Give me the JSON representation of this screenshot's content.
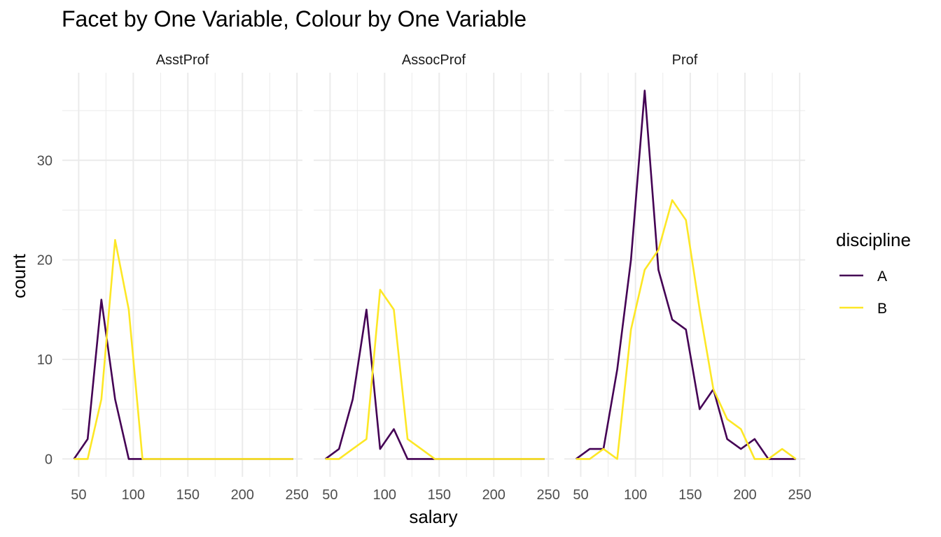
{
  "chart_data": {
    "type": "line",
    "title": "Facet by One Variable, Colour by One Variable",
    "xlabel": "salary",
    "ylabel": "count",
    "x": [
      45.68,
      58.23,
      70.78,
      83.33,
      95.88,
      108.43,
      120.98,
      133.53,
      146.08,
      158.63,
      171.18,
      183.73,
      196.28,
      208.83,
      221.38,
      233.93,
      246.48
    ],
    "xlim": [
      35,
      255
    ],
    "ylim": [
      -1.8,
      38.8
    ],
    "x_ticks": [
      50,
      100,
      150,
      200,
      250
    ],
    "y_ticks": [
      0,
      10,
      20,
      30
    ],
    "grid": true,
    "legend_title": "discipline",
    "legend_position": "right",
    "panels": [
      {
        "label": "AsstProf",
        "series": [
          {
            "name": "A",
            "color": "#440154",
            "values": [
              0,
              2,
              16,
              6,
              0,
              0,
              0,
              0,
              0,
              0,
              0,
              0,
              0,
              0,
              0,
              0,
              0
            ]
          },
          {
            "name": "B",
            "color": "#FDE725",
            "values": [
              0,
              0,
              6,
              22,
              15,
              0,
              0,
              0,
              0,
              0,
              0,
              0,
              0,
              0,
              0,
              0,
              0
            ]
          }
        ]
      },
      {
        "label": "AssocProf",
        "series": [
          {
            "name": "A",
            "color": "#440154",
            "values": [
              0,
              1,
              6,
              15,
              1,
              3,
              0,
              0,
              0,
              0,
              0,
              0,
              0,
              0,
              0,
              0,
              0
            ]
          },
          {
            "name": "B",
            "color": "#FDE725",
            "values": [
              0,
              0,
              1,
              2,
              17,
              15,
              2,
              1,
              0,
              0,
              0,
              0,
              0,
              0,
              0,
              0,
              0
            ]
          }
        ]
      },
      {
        "label": "Prof",
        "series": [
          {
            "name": "A",
            "color": "#440154",
            "values": [
              0,
              1,
              1,
              9,
              20,
              37,
              19,
              14,
              13,
              5,
              7,
              2,
              1,
              2,
              0,
              0,
              0
            ]
          },
          {
            "name": "B",
            "color": "#FDE725",
            "values": [
              0,
              0,
              1,
              0,
              13,
              19,
              21,
              26,
              24,
              15,
              7,
              4,
              3,
              0,
              0,
              1,
              0
            ]
          }
        ]
      }
    ],
    "legend": [
      {
        "label": "A",
        "color": "#440154"
      },
      {
        "label": "B",
        "color": "#FDE725"
      }
    ]
  }
}
